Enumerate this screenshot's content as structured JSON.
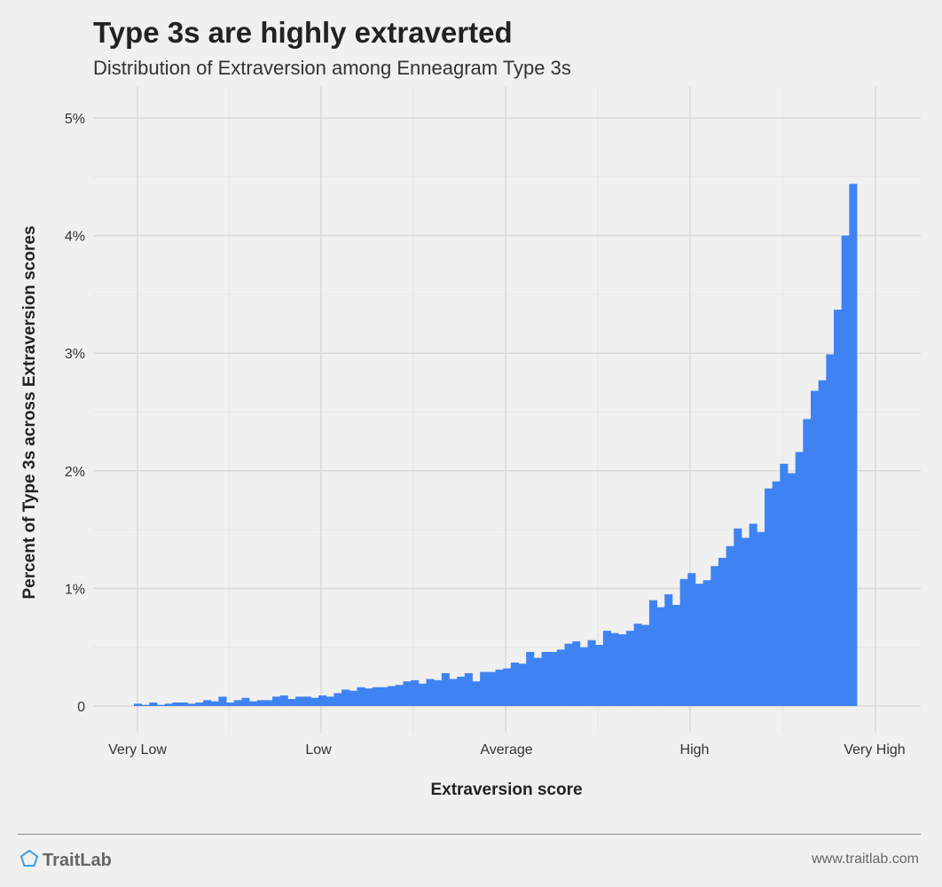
{
  "header": {
    "title": "Type 3s are highly extraverted",
    "subtitle": "Distribution of Extraversion among Enneagram Type 3s"
  },
  "footer": {
    "brand": "TraitLab",
    "url": "www.traitlab.com",
    "brand_color": "#3b9be6",
    "logo_icon": "pentagon-icon"
  },
  "chart_data": {
    "type": "bar",
    "title": "Type 3s are highly extraverted",
    "subtitle": "Distribution of Extraversion among Enneagram Type 3s",
    "xlabel": "Extraversion score",
    "ylabel": "Percent of Type 3s across Extraversion scores",
    "x_ticks": [
      "Very Low",
      "Low",
      "Average",
      "High",
      "Very High"
    ],
    "y_ticks": [
      "0",
      "1%",
      "2%",
      "3%",
      "4%",
      "5%"
    ],
    "ylim": [
      0,
      5
    ],
    "grid": true,
    "bar_color": "#3f83f3",
    "values": [
      0.02,
      0.01,
      0.03,
      0.01,
      0.02,
      0.03,
      0.03,
      0.02,
      0.03,
      0.05,
      0.04,
      0.08,
      0.03,
      0.05,
      0.07,
      0.04,
      0.05,
      0.05,
      0.08,
      0.09,
      0.06,
      0.08,
      0.08,
      0.07,
      0.09,
      0.08,
      0.11,
      0.14,
      0.13,
      0.16,
      0.15,
      0.16,
      0.16,
      0.17,
      0.18,
      0.21,
      0.22,
      0.19,
      0.23,
      0.22,
      0.28,
      0.23,
      0.25,
      0.28,
      0.21,
      0.29,
      0.29,
      0.31,
      0.32,
      0.37,
      0.36,
      0.46,
      0.41,
      0.46,
      0.46,
      0.48,
      0.53,
      0.55,
      0.5,
      0.56,
      0.52,
      0.64,
      0.62,
      0.61,
      0.64,
      0.7,
      0.69,
      0.9,
      0.84,
      0.95,
      0.86,
      1.08,
      1.13,
      1.04,
      1.07,
      1.19,
      1.26,
      1.36,
      1.51,
      1.43,
      1.55,
      1.48,
      1.85,
      1.91,
      2.06,
      1.98,
      2.16,
      2.44,
      2.68,
      2.77,
      2.99,
      3.37,
      4.0,
      4.44
    ]
  }
}
